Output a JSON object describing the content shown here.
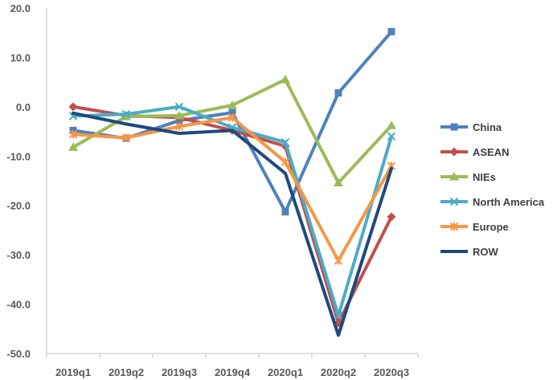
{
  "chart_data": {
    "type": "line",
    "categories": [
      "2019q1",
      "2019q2",
      "2019q3",
      "2019q4",
      "2020q1",
      "2020q2",
      "2020q3"
    ],
    "ylim": [
      -50,
      20
    ],
    "yticks": [
      "20.0",
      "10.0",
      "0.0",
      "-10.0",
      "-20.0",
      "-30.0",
      "-40.0",
      "-50.0"
    ],
    "ytick_values": [
      20,
      10,
      0,
      -10,
      -20,
      -30,
      -40,
      -50
    ],
    "ytick_colors": {
      "positive": "#595959",
      "negative": "#c00000"
    },
    "grid": false,
    "legend_position": "right",
    "series": [
      {
        "name": "China",
        "color": "#4f81bd",
        "marker": "square",
        "values": [
          -4.8,
          -6.4,
          -2.8,
          -1.2,
          -21.3,
          2.8,
          15.2
        ]
      },
      {
        "name": "ASEAN",
        "color": "#c0504d",
        "marker": "diamond",
        "values": [
          0.0,
          -1.8,
          -2.2,
          -4.8,
          -8.0,
          -43.8,
          -22.3
        ]
      },
      {
        "name": "NIEs",
        "color": "#9bbb59",
        "marker": "triangle",
        "values": [
          -8.2,
          -2.0,
          -1.8,
          0.3,
          5.5,
          -15.4,
          -3.8
        ]
      },
      {
        "name": "North America",
        "color": "#4bacc6",
        "marker": "x",
        "values": [
          -1.9,
          -1.5,
          0.0,
          -4.2,
          -7.2,
          -42.3,
          -6.0
        ]
      },
      {
        "name": "Europe",
        "color": "#f79646",
        "marker": "star",
        "values": [
          -5.6,
          -6.3,
          -4.0,
          -2.2,
          -11.2,
          -31.2,
          -12.0
        ]
      },
      {
        "name": "ROW",
        "color": "#1f497d",
        "marker": "none",
        "values": [
          -1.3,
          -3.5,
          -5.4,
          -4.8,
          -13.5,
          -46.3,
          -12.5
        ]
      }
    ]
  }
}
